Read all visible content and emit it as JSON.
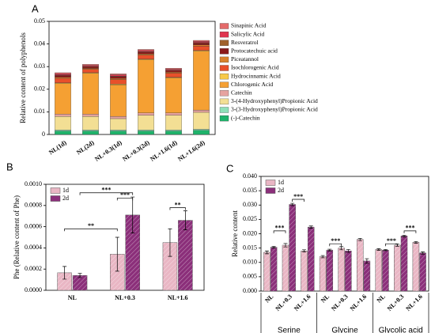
{
  "chart_data": [
    {
      "type": "stacked_bar",
      "panel": "A",
      "ylabel": "Relative content of polyphenols",
      "categories": [
        "NL(1d)",
        "NL(2d)",
        "NL+0.3(1d)",
        "NL+0.3(2d)",
        "NL+1.6(1d)",
        "NL+1.6(2d)"
      ],
      "ylim": [
        0,
        0.05
      ],
      "yticks": [
        0,
        {
          "value": 0.01,
          "label": "0.01"
        },
        {
          "value": 0.02,
          "label": "0.02"
        },
        {
          "value": 0.03,
          "label": "0.03"
        },
        {
          "value": 0.04,
          "label": "0.04"
        },
        {
          "value": 0.05,
          "label": "0.05"
        }
      ],
      "series": [
        {
          "name": "(-)-Catechin",
          "color": "#1fb36b",
          "values": [
            0.0015,
            0.0015,
            0.0015,
            0.0015,
            0.0015,
            0.0018
          ]
        },
        {
          "name": "3-(3-Hydroxyphenyl)Propionic Acid",
          "color": "#8fe0b8",
          "values": [
            0.0005,
            0.0005,
            0.0005,
            0.0005,
            0.0005,
            0.0005
          ]
        },
        {
          "name": "3-(4-Hydroxyphenyl)Propionic Acid",
          "color": "#f3df94",
          "values": [
            0.006,
            0.006,
            0.005,
            0.0065,
            0.0065,
            0.0075
          ]
        },
        {
          "name": "Catechin",
          "color": "#e6a3a0",
          "values": [
            0.001,
            0.001,
            0.001,
            0.001,
            0.001,
            0.001
          ]
        },
        {
          "name": "Chlorogenic Acid",
          "color": "#f5a033",
          "values": [
            0.0135,
            0.018,
            0.014,
            0.0235,
            0.0155,
            0.026
          ]
        },
        {
          "name": "Hydrocinnamic Acid",
          "color": "#f7c948",
          "values": [
            0.0003,
            0.0003,
            0.0003,
            0.0003,
            0.0003,
            0.0003
          ]
        },
        {
          "name": "Isochlorogenic Acid",
          "color": "#e8502a",
          "values": [
            0.002,
            0.0015,
            0.002,
            0.0018,
            0.0018,
            0.002
          ]
        },
        {
          "name": "Piceatannol",
          "color": "#d9822b",
          "values": [
            0.0005,
            0.0004,
            0.0005,
            0.0005,
            0.0004,
            0.0005
          ]
        },
        {
          "name": "Protocatechuic acid",
          "color": "#8b1a1a",
          "values": [
            0.0008,
            0.0007,
            0.0008,
            0.0008,
            0.0007,
            0.0008
          ]
        },
        {
          "name": "Resveratrol",
          "color": "#a0622c",
          "values": [
            0.0002,
            0.0002,
            0.0002,
            0.0002,
            0.0002,
            0.0002
          ]
        },
        {
          "name": "Salicylic Acid",
          "color": "#e03550",
          "values": [
            0.0005,
            0.0004,
            0.0005,
            0.0005,
            0.0004,
            0.0005
          ]
        },
        {
          "name": "Sinapinic Acid",
          "color": "#e46a6a",
          "values": [
            0.0005,
            0.0005,
            0.0005,
            0.0005,
            0.0005,
            0.0005
          ]
        }
      ]
    },
    {
      "type": "bar",
      "panel": "B",
      "ylabel": "Phe (Relative content of Phe)",
      "categories": [
        "NL",
        "NL+0.3",
        "NL+1.6"
      ],
      "ylim": [
        0,
        0.001
      ],
      "yticks": [
        {
          "value": 0,
          "label": "0.0000"
        },
        {
          "value": 0.0002,
          "label": "0.0002"
        },
        {
          "value": 0.0004,
          "label": "0.0004"
        },
        {
          "value": 0.0006,
          "label": "0.0006"
        },
        {
          "value": 0.0008,
          "label": "0.0008"
        },
        {
          "value": 0.001,
          "label": "0.0010"
        }
      ],
      "series": [
        {
          "name": "1d",
          "color": "#e9b6c4",
          "values": [
            0.000165,
            0.00034,
            0.00045
          ],
          "errors": [
            6e-05,
            0.00016,
            0.00013
          ]
        },
        {
          "name": "2d",
          "color": "#8b2f7a",
          "values": [
            0.00014,
            0.00071,
            0.00066
          ],
          "errors": [
            2e-05,
            0.00017,
            9e-05
          ]
        }
      ],
      "annotations": [
        "***",
        "**",
        "***",
        "**"
      ]
    },
    {
      "type": "bar",
      "panel": "C",
      "ylabel": "Relative content",
      "categories": [
        "NL",
        "NL+0.3",
        "NL+1.6",
        "NL",
        "NL+0.3",
        "NL+1.6",
        "NL",
        "NL+0.3",
        "NL+1.6"
      ],
      "groups": [
        "Serine",
        "Glycine",
        "Glycolic acid"
      ],
      "ylim": [
        0,
        0.04
      ],
      "yticks": [
        {
          "value": 0,
          "label": "0.000"
        },
        {
          "value": 0.005,
          "label": "0.005"
        },
        {
          "value": 0.01,
          "label": "0.010"
        },
        {
          "value": 0.015,
          "label": "0.015"
        },
        {
          "value": 0.02,
          "label": "0.020"
        },
        {
          "value": 0.025,
          "label": "0.025"
        },
        {
          "value": 0.03,
          "label": "0.030"
        },
        {
          "value": 0.035,
          "label": "0.035"
        },
        {
          "value": 0.04,
          "label": "0.040"
        }
      ],
      "series": [
        {
          "name": "1d",
          "color": "#e9b6c4",
          "values": [
            0.0135,
            0.016,
            0.014,
            0.012,
            0.015,
            0.018,
            0.0145,
            0.016,
            0.017
          ],
          "errors": [
            0.0005,
            0.0006,
            0.0004,
            0.0004,
            0.0006,
            0.0004,
            0.0003,
            0.0004,
            0.0003
          ]
        },
        {
          "name": "2d",
          "color": "#8b2f7a",
          "values": [
            0.0153,
            0.0302,
            0.0223,
            0.0143,
            0.014,
            0.0105,
            0.0143,
            0.0192,
            0.0133
          ],
          "errors": [
            0.0003,
            0.0004,
            0.0004,
            0.0003,
            0.0005,
            0.0008,
            0.0002,
            0.0003,
            0.0004
          ]
        }
      ],
      "annotations": [
        "***",
        "***",
        "***",
        "***",
        "***"
      ]
    }
  ]
}
